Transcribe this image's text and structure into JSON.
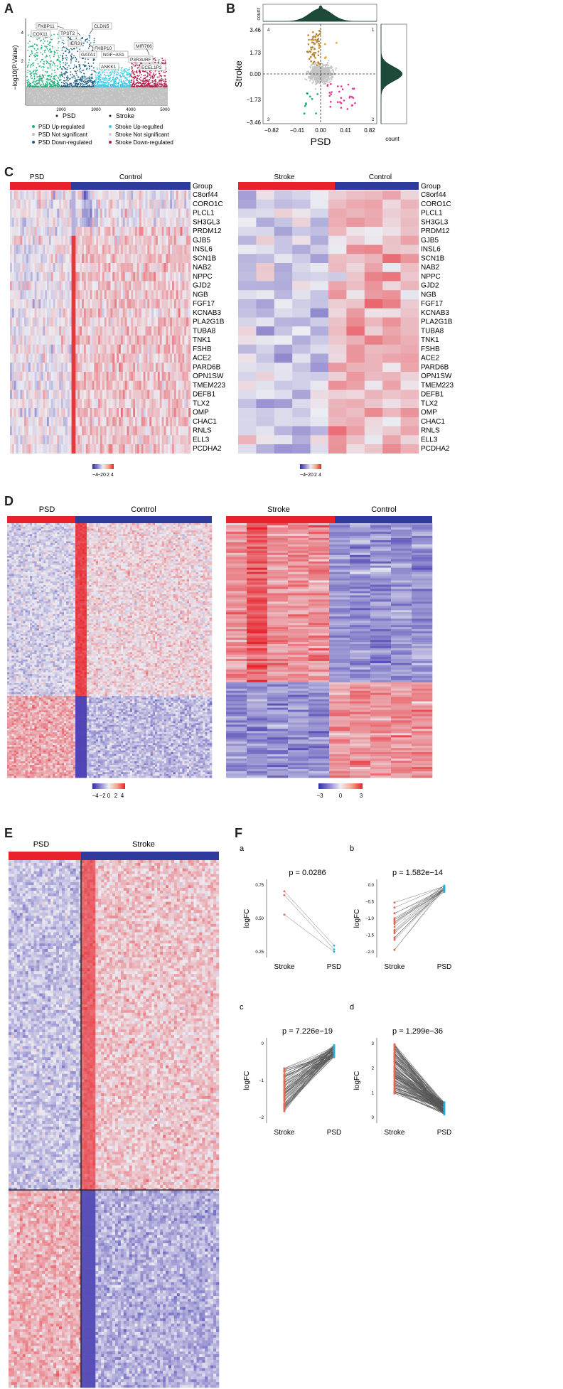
{
  "panels": {
    "A": "A",
    "B": "B",
    "C": "C",
    "D": "D",
    "E": "E",
    "F": "F"
  },
  "panelA": {
    "ylabel": "−log10(P.Value)",
    "yticks": [
      "4",
      "2"
    ],
    "xticks": [
      "2000",
      "3000",
      "4000",
      "5000"
    ],
    "groups": [
      "PSD",
      "Stroke"
    ],
    "labels": [
      "FKBP11",
      "COX11",
      "TPST2",
      "CLDN5",
      "IER3",
      "FKBP10",
      "GATA1",
      "NGF−AS1",
      "ANKK1",
      "MIR766",
      "P3R3URF",
      "ECEL1P2"
    ],
    "legend": [
      {
        "text": "PSD Up-regulated",
        "color": "#20b07a"
      },
      {
        "text": "PSD Not significant",
        "color": "#bdbdbd"
      },
      {
        "text": "PSD Down-regulated",
        "color": "#1b5e85"
      },
      {
        "text": "Stroke Up-regulted",
        "color": "#3ecbe8"
      },
      {
        "text": "Stroke Not significant",
        "color": "#cfcfcf"
      },
      {
        "text": "Stroke Down-regulated",
        "color": "#b21f4b"
      }
    ]
  },
  "panelB": {
    "xlabel": "PSD",
    "ylabel": "Stroke",
    "xticks": [
      "−0.82",
      "−0.41",
      "0.00",
      "0.41",
      "0.82"
    ],
    "yticks": [
      "3.46",
      "1.73",
      "0.00",
      "−1.73",
      "−3.46"
    ],
    "count_label": "count",
    "top_ticks": [
      "1500",
      "1000",
      "500",
      "0"
    ],
    "quadrants": [
      "1",
      "2",
      "3",
      "4"
    ]
  },
  "panelC": {
    "left": {
      "groups": [
        "PSD",
        "Control"
      ],
      "group_label": "Group",
      "genes": [
        "C8orf44",
        "CORO1C",
        "PLCL1",
        "SH3GL3",
        "PRDM12",
        "GJB5",
        "INSL6",
        "SCN1B",
        "NAB2",
        "NPPC",
        "GJD2",
        "NGB",
        "FGF17",
        "KCNAB3",
        "PLA2G1B",
        "TUBA8",
        "TNK1",
        "FSHB",
        "ACE2",
        "PARD6B",
        "OPN1SW",
        "TMEM223",
        "DEFB1",
        "TLX2",
        "OMP",
        "CHAC1",
        "RNLS",
        "ELL3",
        "PCDHA2"
      ],
      "scale": [
        "−4",
        "−2",
        "0",
        "2",
        "4"
      ]
    },
    "right": {
      "groups": [
        "Stroke",
        "Control"
      ],
      "group_label": "Group",
      "genes": [
        "C8orf44",
        "CORO1C",
        "PLCL1",
        "SH3GL3",
        "PRDM12",
        "GJB5",
        "INSL6",
        "SCN1B",
        "NAB2",
        "NPPC",
        "GJD2",
        "NGB",
        "FGF17",
        "KCNAB3",
        "PLA2G1B",
        "TUBA8",
        "TNK1",
        "FSHB",
        "ACE2",
        "PARD6B",
        "OPN1SW",
        "TMEM223",
        "DEFB1",
        "TLX2",
        "OMP",
        "CHAC1",
        "RNLS",
        "ELL3",
        "PCDHA2"
      ],
      "scale": [
        "−4",
        "−2",
        "0",
        "2",
        "4"
      ]
    }
  },
  "panelD": {
    "left": {
      "groups": [
        "PSD",
        "Control"
      ],
      "scale": [
        "−4",
        "−2",
        "0",
        "2",
        "4"
      ]
    },
    "right": {
      "groups": [
        "Stroke",
        "Control"
      ],
      "scale": [
        "−3",
        "0",
        "3"
      ]
    }
  },
  "panelE": {
    "groups": [
      "PSD",
      "Stroke"
    ]
  },
  "panelF": {
    "subplots": [
      {
        "id": "a",
        "p": "p = 0.0286",
        "ylabel": "logFC",
        "yticks": [
          "0.75",
          "0.50",
          "0.25"
        ],
        "xticks": [
          "Stroke",
          "PSD"
        ]
      },
      {
        "id": "b",
        "p": "p = 1.582e−14",
        "ylabel": "logFC",
        "yticks": [
          "0.0",
          "−0.5",
          "−1.0",
          "−1.5",
          "−2.0"
        ],
        "xticks": [
          "Stroke",
          "PSD"
        ]
      },
      {
        "id": "c",
        "p": "p = 7.226e−19",
        "ylabel": "logFC",
        "yticks": [
          "0",
          "−1",
          "−2"
        ],
        "xticks": [
          "Stroke",
          "PSD"
        ]
      },
      {
        "id": "d",
        "p": "p = 1.299e−36",
        "ylabel": "logFC",
        "yticks": [
          "3",
          "2",
          "1",
          "0"
        ],
        "xticks": [
          "Stroke",
          "PSD"
        ]
      }
    ]
  },
  "colors": {
    "red": "#e8212a",
    "blue": "#2e3a9c",
    "low": "#3b2fb5",
    "high": "#e8212a",
    "mid": "#ebebf0"
  }
}
